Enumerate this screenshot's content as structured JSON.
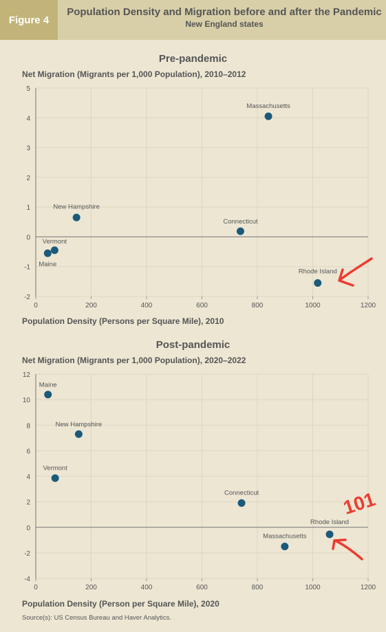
{
  "header": {
    "figure_tag": "Figure 4",
    "title": "Population Density and Migration before and after the Pandemic",
    "subtitle": "New England states"
  },
  "colors": {
    "point": "#1c5a7a",
    "annotation": "#ee3b2f",
    "grid": "#dcd6c2",
    "zero_line": "#777777"
  },
  "chart_data": [
    {
      "type": "scatter",
      "title": "Pre-pandemic",
      "ylabel": "Net Migration (Migrants per 1,000 Population), 2010–2012",
      "xlabel": "Population Density (Persons per Square Mile), 2010",
      "xlim": [
        0,
        1200
      ],
      "ylim": [
        -2,
        5
      ],
      "xticks": [
        0,
        200,
        400,
        600,
        800,
        1000,
        1200
      ],
      "yticks": [
        -2,
        -1,
        0,
        1,
        2,
        3,
        4,
        5
      ],
      "grid": true,
      "points": [
        {
          "label": "Massachusetts",
          "x": 840,
          "y": 4.05
        },
        {
          "label": "New Hampshire",
          "x": 147,
          "y": 0.65
        },
        {
          "label": "Connecticut",
          "x": 739,
          "y": 0.19
        },
        {
          "label": "Vermont",
          "x": 68,
          "y": -0.45
        },
        {
          "label": "Maine",
          "x": 43,
          "y": -0.55
        },
        {
          "label": "Rhode Island",
          "x": 1018,
          "y": -1.55
        }
      ]
    },
    {
      "type": "scatter",
      "title": "Post-pandemic",
      "ylabel": "Net Migration (Migrants per 1,000 Population), 2020–2022",
      "xlabel": "Population Density (Person per Square Mile), 2020",
      "xlim": [
        0,
        1200
      ],
      "ylim": [
        -4,
        12
      ],
      "xticks": [
        0,
        200,
        400,
        600,
        800,
        1000,
        1200
      ],
      "yticks": [
        -4,
        -2,
        0,
        2,
        4,
        6,
        8,
        10,
        12
      ],
      "grid": true,
      "points": [
        {
          "label": "Maine",
          "x": 44,
          "y": 10.4
        },
        {
          "label": "New Hampshire",
          "x": 155,
          "y": 7.3
        },
        {
          "label": "Vermont",
          "x": 70,
          "y": 3.85
        },
        {
          "label": "Connecticut",
          "x": 743,
          "y": 1.9
        },
        {
          "label": "Rhode Island",
          "x": 1061,
          "y": -0.55
        },
        {
          "label": "Massachusetts",
          "x": 899,
          "y": -1.5
        }
      ]
    }
  ],
  "annotations": {
    "handwritten_text": "101"
  },
  "source": "Source(s): US Census Bureau and Haver Analytics."
}
